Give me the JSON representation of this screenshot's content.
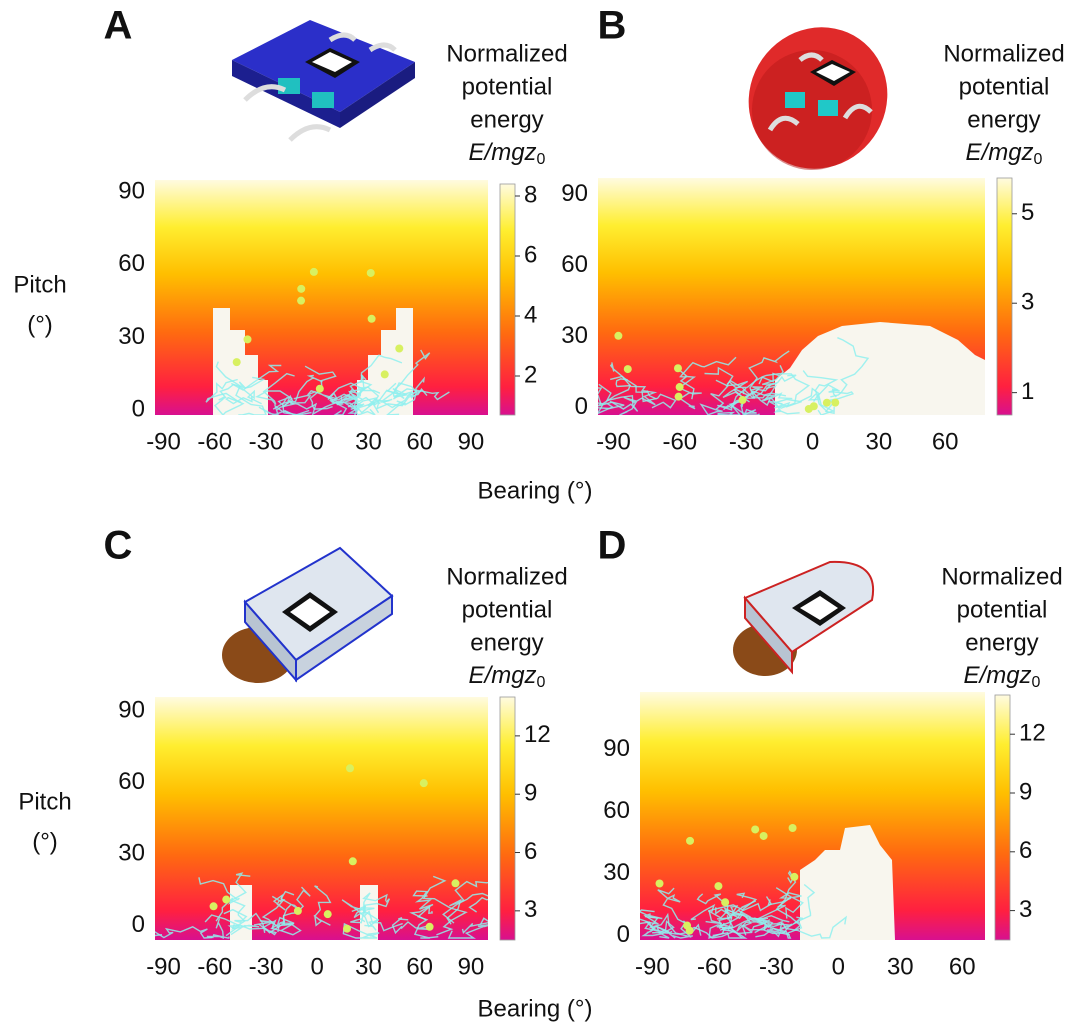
{
  "chart_data": [
    {
      "type": "heatmap",
      "panel_label": "A",
      "xticks": [
        -90,
        -60,
        -30,
        0,
        30,
        60,
        90
      ],
      "xlim": [
        -95,
        100
      ],
      "yticks": [
        0,
        30,
        60,
        90
      ],
      "ylim": [
        -2,
        95
      ],
      "colorbar": {
        "label_lines": [
          "Normalized",
          "potential",
          "energy"
        ],
        "symbol": "E/mgz",
        "subscript": "0",
        "ticks": [
          2,
          4,
          6,
          8
        ],
        "lim": [
          0.7,
          8.4
        ]
      }
    },
    {
      "type": "heatmap",
      "panel_label": "B",
      "xticks": [
        -90,
        -60,
        -30,
        0,
        30,
        60
      ],
      "xlim": [
        -97,
        78
      ],
      "yticks": [
        0,
        30,
        60,
        90
      ],
      "ylim": [
        -3,
        97
      ],
      "colorbar": {
        "label_lines": [
          "Normalized",
          "potential",
          "energy"
        ],
        "symbol": "E/mgz",
        "subscript": "0",
        "ticks": [
          1,
          3,
          5
        ],
        "lim": [
          0.5,
          5.8
        ]
      }
    },
    {
      "type": "heatmap",
      "panel_label": "C",
      "xticks": [
        -90,
        -60,
        -30,
        0,
        30,
        60,
        90
      ],
      "xlim": [
        -95,
        100
      ],
      "yticks": [
        0,
        30,
        60,
        90
      ],
      "ylim": [
        -6,
        96
      ],
      "colorbar": {
        "label_lines": [
          "Normalized",
          "potential",
          "energy"
        ],
        "symbol": "E/mgz",
        "subscript": "0",
        "ticks": [
          3,
          6,
          9,
          12
        ],
        "lim": [
          1.5,
          14
        ]
      }
    },
    {
      "type": "heatmap",
      "panel_label": "D",
      "xticks": [
        -90,
        -60,
        -30,
        0,
        30,
        60
      ],
      "xlim": [
        -96,
        71
      ],
      "yticks": [
        0,
        30,
        60,
        90
      ],
      "ylim": [
        -2,
        118
      ],
      "colorbar": {
        "label_lines": [
          "Normalized",
          "potential",
          "energy"
        ],
        "symbol": "E/mgz",
        "subscript": "0",
        "ticks": [
          3,
          6,
          9,
          12
        ],
        "lim": [
          1.5,
          14
        ]
      }
    }
  ],
  "axis_labels": [
    {
      "xlabel": "Bearing (°)",
      "ylabel_lines": [
        "Pitch",
        "(°)"
      ]
    },
    {
      "xlabel": "Bearing (°)",
      "ylabel_lines": [
        "Pitch",
        "(°)"
      ]
    }
  ]
}
